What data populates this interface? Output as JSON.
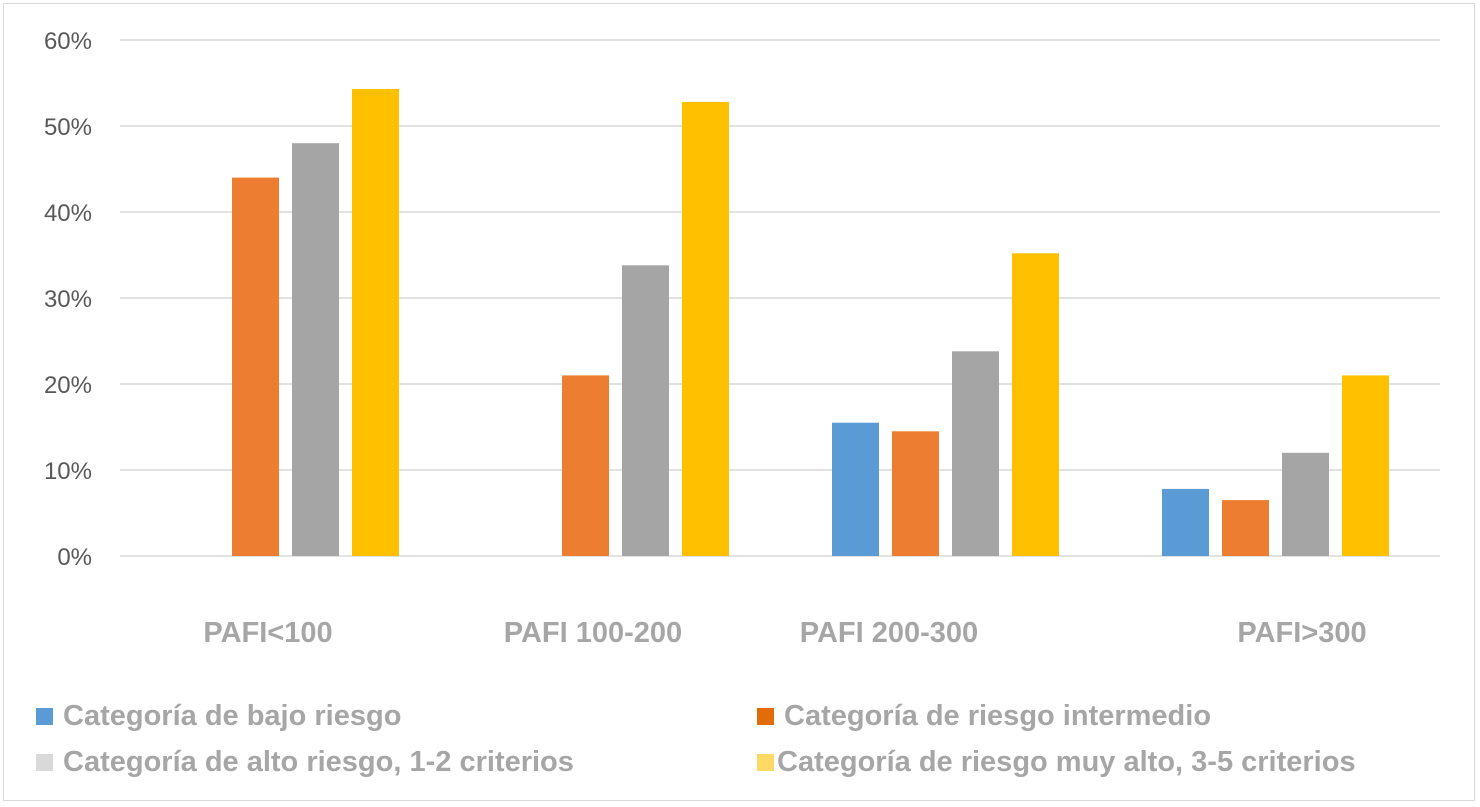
{
  "chart_data": {
    "type": "bar",
    "title": "",
    "xlabel": "",
    "ylabel": "",
    "ylim": [
      0,
      0.6
    ],
    "yticks": [
      "0%",
      "10%",
      "20%",
      "30%",
      "40%",
      "50%",
      "60%"
    ],
    "categories": [
      "PAFI<100",
      "PAFI 100-200",
      "PAFI 200-300",
      "PAFI>300"
    ],
    "series": [
      {
        "name": "Categoría de bajo riesgo",
        "color": "#5b9bd5",
        "values": [
          0,
          0,
          0.155,
          0.078
        ]
      },
      {
        "name": "Categoría de riesgo intermedio",
        "color": "#ed7d31",
        "values": [
          0.44,
          0.21,
          0.145,
          0.065
        ]
      },
      {
        "name": "Categoría de alto riesgo, 1-2 criterios",
        "color": "#a5a5a5",
        "values": [
          0.48,
          0.338,
          0.238,
          0.12
        ]
      },
      {
        "name": "Categoría de riesgo muy alto, 3-5 criterios",
        "color": "#ffc000",
        "values": [
          0.543,
          0.528,
          0.352,
          0.21
        ]
      }
    ],
    "grid": true,
    "legend_position": "bottom"
  }
}
